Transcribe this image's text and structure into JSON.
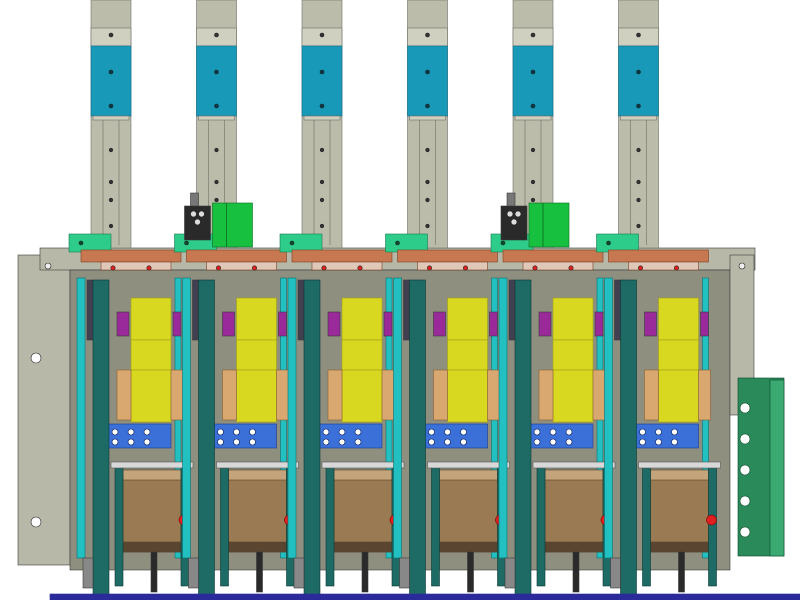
{
  "drawing": {
    "view": "front elevation",
    "pole_count": 6,
    "mechanism_count": 2,
    "mechanism_poles": [
      2,
      5
    ],
    "side_plate_hole_count": 5
  },
  "colors": {
    "frame": "#b8b8a8",
    "frame_dark": "#8f8f80",
    "busbar": "#bcbcaa",
    "busbar_edge": "#6f6f66",
    "blue_block": "#1899b8",
    "blue_block_dark": "#0f6f88",
    "terminal_green": "#2ecc8a",
    "contact_green": "#18c040",
    "yellow_coil": "#d8d820",
    "yellow_dark": "#a0a018",
    "magenta_link": "#9a2a9a",
    "tan_part": "#d8a870",
    "copper_bar": "#c87850",
    "red_dot": "#e02020",
    "lower_blue": "#3a70d8",
    "teal_rod": "#1e6a64",
    "cyan_rail": "#22c0c0",
    "coil_body": "#9a7a52",
    "coil_dark": "#5a4630",
    "coil_light": "#c4a47a",
    "side_plate": "#2a8a5a",
    "base_line": "#2a2a9a",
    "black_part": "#2a2a2a"
  }
}
